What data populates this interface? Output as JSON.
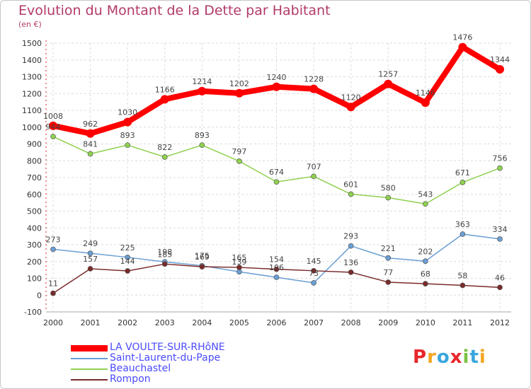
{
  "title": "Evolution du Montant de la Dette par Habitant",
  "subtitle": "(en €)",
  "logo_text": "Proxiti",
  "logo_colors": [
    "#e8262b",
    "#f5a623",
    "#3aa6dd",
    "#e8262b",
    "#7cc242",
    "#3aa6dd",
    "#f5a623"
  ],
  "chart_data": {
    "type": "line",
    "title": "Evolution du Montant de la Dette par Habitant",
    "ylabel": "(en €)",
    "xlabel": "",
    "x": [
      "2000",
      "2001",
      "2002",
      "2003",
      "2004",
      "2005",
      "2006",
      "2007",
      "2008",
      "2009",
      "2010",
      "2011",
      "2012"
    ],
    "ylim": [
      -100,
      1500
    ],
    "yticks": [
      -100,
      0,
      100,
      200,
      300,
      400,
      500,
      600,
      700,
      800,
      900,
      1000,
      1100,
      1200,
      1300,
      1400,
      1500
    ],
    "grid": true,
    "legend_position": "bottom-left",
    "series": [
      {
        "name": "LA VOULTE-SUR-RHôNE",
        "color": "#ff0000",
        "values": [
          1008,
          962,
          1030,
          1166,
          1214,
          1202,
          1240,
          1228,
          1120,
          1257,
          1146,
          1476,
          1344
        ]
      },
      {
        "name": "Saint-Laurent-du-Pape",
        "color": "#6a9fd4",
        "values": [
          273,
          249,
          225,
          198,
          175,
          139,
          106,
          73,
          293,
          221,
          202,
          363,
          334
        ]
      },
      {
        "name": "Beauchastel",
        "color": "#8fd14f",
        "values": [
          944,
          841,
          893,
          822,
          893,
          797,
          674,
          707,
          601,
          580,
          543,
          671,
          756
        ]
      },
      {
        "name": "Rompon",
        "color": "#7a2a2a",
        "values": [
          11,
          157,
          144,
          185,
          169,
          165,
          154,
          145,
          136,
          77,
          68,
          58,
          46
        ]
      }
    ]
  }
}
